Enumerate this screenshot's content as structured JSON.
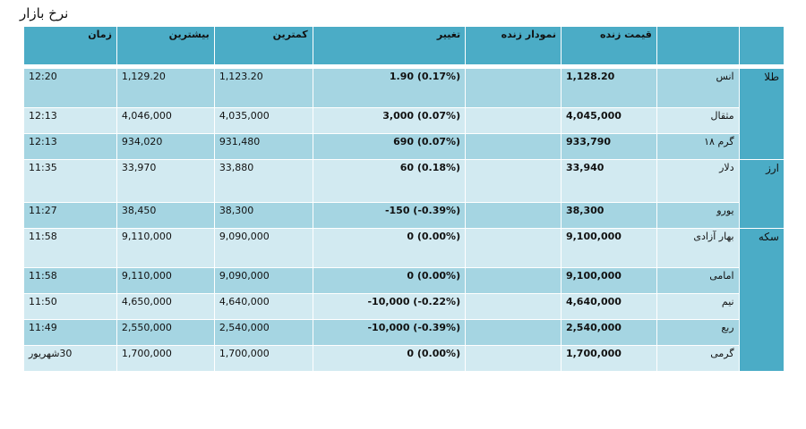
{
  "title": "نرخ بازار",
  "headers": {
    "category": "",
    "item": "",
    "live_price": "قیمت زنده",
    "live_chart": "نمودار زنده",
    "change": "تغییر",
    "low": "کمترین",
    "high": "بیشترین",
    "time": "زمان"
  },
  "groups": [
    {
      "name": "طلا",
      "rows": [
        {
          "item": "انس",
          "price": "1,128.20",
          "chart": "",
          "change": "1.90 (0.17%)",
          "low": "1,123.20",
          "high": "1,129.20",
          "time": "12:20"
        },
        {
          "item": "مثقال",
          "price": "4,045,000",
          "chart": "",
          "change": "3,000 (0.07%)",
          "low": "4,035,000",
          "high": "4,046,000",
          "time": "12:13"
        },
        {
          "item": "گرم ۱۸",
          "price": "933,790",
          "chart": "",
          "change": "690 (0.07%)",
          "low": "931,480",
          "high": "934,020",
          "time": "12:13"
        }
      ]
    },
    {
      "name": "ارز",
      "rows": [
        {
          "item": "دلار",
          "price": "33,940",
          "chart": "",
          "change": "60 (0.18%)",
          "low": "33,880",
          "high": "33,970",
          "time": "11:35"
        },
        {
          "item": "یورو",
          "price": "38,300",
          "chart": "",
          "change": "-150 (-0.39%)",
          "low": "38,300",
          "high": "38,450",
          "time": "11:27"
        }
      ]
    },
    {
      "name": "سکه",
      "rows": [
        {
          "item": "بهار آزادی",
          "price": "9,100,000",
          "chart": "",
          "change": "0 (0.00%)",
          "low": "9,090,000",
          "high": "9,110,000",
          "time": "11:58"
        },
        {
          "item": "امامی",
          "price": "9,100,000",
          "chart": "",
          "change": "0 (0.00%)",
          "low": "9,090,000",
          "high": "9,110,000",
          "time": "11:58"
        },
        {
          "item": "نیم",
          "price": "4,640,000",
          "chart": "",
          "change": "-10,000 (-0.22%)",
          "low": "4,640,000",
          "high": "4,650,000",
          "time": "11:50"
        },
        {
          "item": "ربع",
          "price": "2,540,000",
          "chart": "",
          "change": "-10,000 (-0.39%)",
          "low": "2,540,000",
          "high": "2,550,000",
          "time": "11:49"
        },
        {
          "item": "گرمی",
          "price": "1,700,000",
          "chart": "",
          "change": "0 (0.00%)",
          "low": "1,700,000",
          "high": "1,700,000",
          "time": "30شهریور"
        }
      ]
    }
  ],
  "colors": {
    "header": "#4bacc6",
    "row_dark": "#a5d5e2",
    "row_light": "#d2eaf1"
  }
}
